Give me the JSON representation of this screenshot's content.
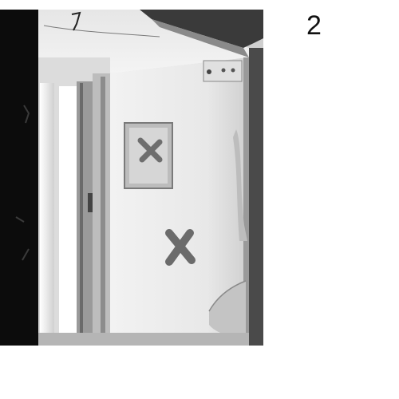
{
  "page": {
    "number": "2",
    "colors": {
      "background": "#ffffff",
      "ink": "#111111"
    }
  },
  "photo": {
    "style": "black-and-white",
    "marks": [
      "X",
      "X"
    ]
  }
}
